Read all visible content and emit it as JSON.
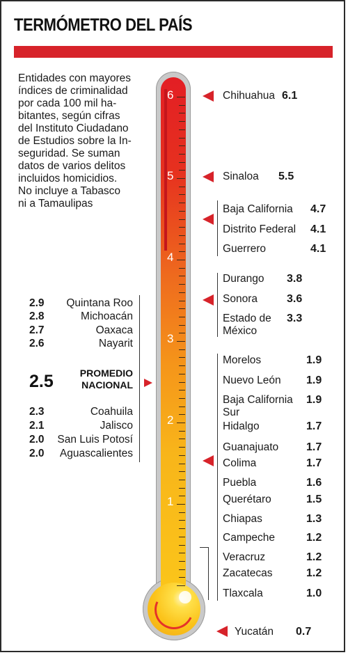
{
  "title": "TERMÓMETRO DEL PAÍS",
  "description": "Entidades con mayores índices de criminalidad por cada 100 mil habitantes, según cifras del Instituto Ciudadano de Estudios sobre la Inseguridad. Se suman datos de varios delitos incluidos homicidios. No incluye a Tabasco ni a Tamaulipas",
  "description_lines": [
    "Entidades con mayores",
    "índices de criminalidad",
    "por cada 100 mil ha-",
    "bitantes, según cifras",
    "del Instituto Ciudadano",
    "de Estudios sobre la In-",
    "seguridad. Se suman",
    "datos de varios delitos",
    "incluidos homicidios.",
    "No incluye a Tabasco",
    "ni a Tamaulipas"
  ],
  "scale_labels": [
    "6",
    "5",
    "4",
    "3",
    "2",
    "1"
  ],
  "national_average": {
    "value": "2.5",
    "label_line1": "PROMEDIO",
    "label_line2": "NACIONAL"
  },
  "right_states": [
    {
      "name": "Chihuahua",
      "value": "6.1"
    },
    {
      "name": "Sinaloa",
      "value": "5.5"
    },
    {
      "name": "Baja California",
      "value": "4.7"
    },
    {
      "name": "Distrito Federal",
      "value": "4.1"
    },
    {
      "name": "Guerrero",
      "value": "4.1"
    },
    {
      "name": "Durango",
      "value": "3.8"
    },
    {
      "name": "Sonora",
      "value": "3.6"
    },
    {
      "name": "Estado de",
      "name2": "México",
      "value": "3.3"
    },
    {
      "name": "Morelos",
      "value": "1.9"
    },
    {
      "name": "Nuevo León",
      "value": "1.9"
    },
    {
      "name": "Baja California",
      "name2": "Sur",
      "value": "1.9"
    },
    {
      "name": "Hidalgo",
      "value": "1.7"
    },
    {
      "name": "Guanajuato",
      "value": "1.7"
    },
    {
      "name": "Colima",
      "value": "1.7"
    },
    {
      "name": "Puebla",
      "value": "1.6"
    },
    {
      "name": "Querétaro",
      "value": "1.5"
    },
    {
      "name": "Chiapas",
      "value": "1.3"
    },
    {
      "name": "Campeche",
      "value": "1.2"
    },
    {
      "name": "Veracruz",
      "value": "1.2"
    },
    {
      "name": "Zacatecas",
      "value": "1.2"
    },
    {
      "name": "Tlaxcala",
      "value": "1.0"
    },
    {
      "name": "Yucatán",
      "value": "0.7"
    }
  ],
  "left_states": [
    {
      "name": "Quintana Roo",
      "value": "2.9"
    },
    {
      "name": "Michoacán",
      "value": "2.8"
    },
    {
      "name": "Oaxaca",
      "value": "2.7"
    },
    {
      "name": "Nayarit",
      "value": "2.6"
    },
    {
      "name": "Coahuila",
      "value": "2.3"
    },
    {
      "name": "Jalisco",
      "value": "2.1"
    },
    {
      "name": "San Luis Potosí",
      "value": "2.0"
    },
    {
      "name": "Aguascalientes",
      "value": "2.0"
    }
  ],
  "colors": {
    "accent": "#d7232a",
    "mercury_top": "#e31e24",
    "mercury_bottom": "#fbc61a"
  }
}
